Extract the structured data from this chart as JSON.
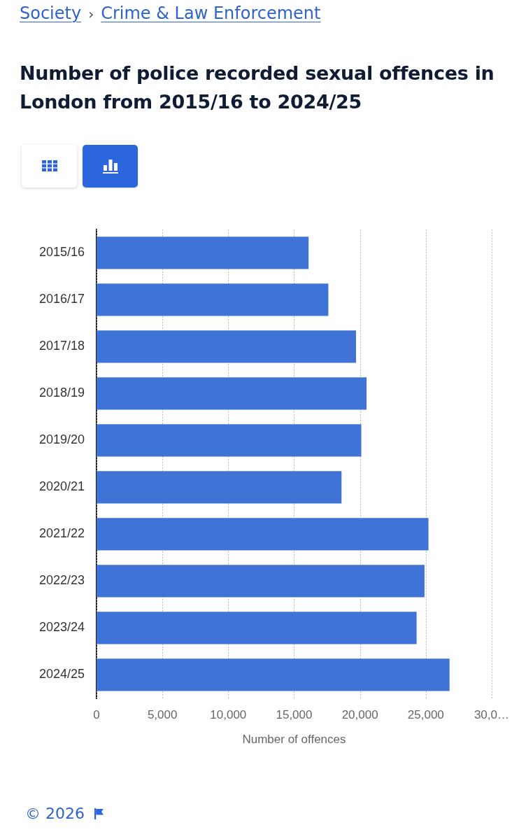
{
  "chart_data": {
    "type": "bar",
    "orientation": "horizontal",
    "title": "Number of police recorded sexual offences in London from 2015/16 to 2024/25",
    "xlabel": "Number of offences",
    "categories": [
      "2015/16",
      "2016/17",
      "2017/18",
      "2018/19",
      "2019/20",
      "2020/21",
      "2021/22",
      "2022/23",
      "2023/24",
      "2024/25"
    ],
    "values": [
      16100,
      17600,
      19700,
      20500,
      20100,
      18600,
      25200,
      24900,
      24300,
      26800
    ],
    "color": "#3f74d6",
    "xlim": [
      0,
      30000
    ],
    "xticks": [
      0,
      {
        "value": 5000,
        "label": "5,000"
      },
      {
        "value": 10000,
        "label": "10,000"
      },
      {
        "value": 15000,
        "label": "15,000"
      },
      {
        "value": 20000,
        "label": "20,000"
      },
      {
        "value": 25000,
        "label": "25,000"
      },
      {
        "value": 30000,
        "label": "30,0…"
      }
    ],
    "grid": "x",
    "annotations": [
      "Society",
      "›",
      "Crime & Law Enforcement",
      "© 2026"
    ]
  }
}
